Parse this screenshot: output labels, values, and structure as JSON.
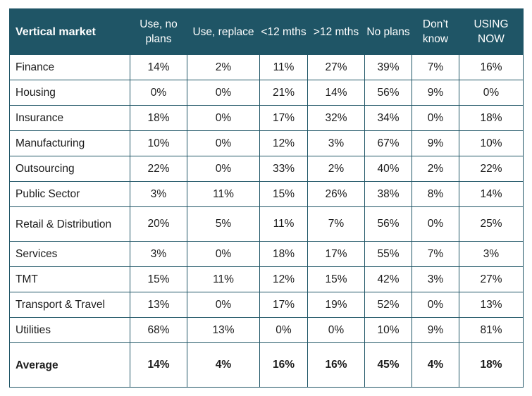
{
  "table": {
    "headers": [
      "Vertical market",
      "Use, no plans",
      "Use, replace",
      "<12 mths",
      ">12 mths",
      "No plans",
      "Don’t know",
      "USING NOW"
    ],
    "rows": [
      {
        "label": "Finance",
        "values": [
          "14%",
          "2%",
          "11%",
          "27%",
          "39%",
          "7%",
          "16%"
        ]
      },
      {
        "label": "Housing",
        "values": [
          "0%",
          "0%",
          "21%",
          "14%",
          "56%",
          "9%",
          "0%"
        ]
      },
      {
        "label": "Insurance",
        "values": [
          "18%",
          "0%",
          "17%",
          "32%",
          "34%",
          "0%",
          "18%"
        ]
      },
      {
        "label": "Manufacturing",
        "values": [
          "10%",
          "0%",
          "12%",
          "3%",
          "67%",
          "9%",
          "10%"
        ]
      },
      {
        "label": "Outsourcing",
        "values": [
          "22%",
          "0%",
          "33%",
          "2%",
          "40%",
          "2%",
          "22%"
        ]
      },
      {
        "label": "Public Sector",
        "values": [
          "3%",
          "11%",
          "15%",
          "26%",
          "38%",
          "8%",
          "14%"
        ]
      },
      {
        "label": "Retail & Distribution",
        "values": [
          "20%",
          "5%",
          "11%",
          "7%",
          "56%",
          "0%",
          "25%"
        ]
      },
      {
        "label": "Services",
        "values": [
          "3%",
          "0%",
          "18%",
          "17%",
          "55%",
          "7%",
          "3%"
        ]
      },
      {
        "label": "TMT",
        "values": [
          "15%",
          "11%",
          "12%",
          "15%",
          "42%",
          "3%",
          "27%"
        ]
      },
      {
        "label": "Transport & Travel",
        "values": [
          "13%",
          "0%",
          "17%",
          "19%",
          "52%",
          "0%",
          "13%"
        ]
      },
      {
        "label": "Utilities",
        "values": [
          "68%",
          "13%",
          "0%",
          "0%",
          "10%",
          "9%",
          "81%"
        ]
      }
    ],
    "average": {
      "label": "Average",
      "values": [
        "14%",
        "4%",
        "16%",
        "16%",
        "45%",
        "4%",
        "18%"
      ]
    }
  }
}
